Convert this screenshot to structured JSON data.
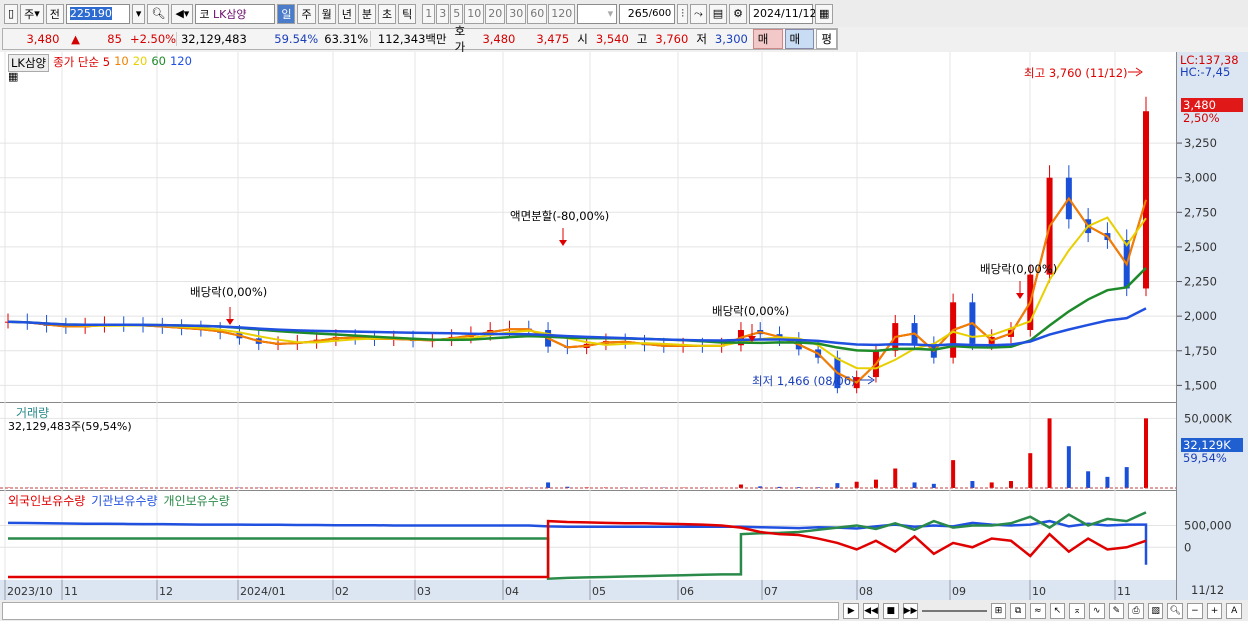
{
  "toolbar": {
    "market": "주",
    "prev": "전",
    "code": "225190",
    "name_prefix": "코",
    "name": "LK삼양",
    "periods": [
      "일",
      "주",
      "월",
      "년",
      "분",
      "초",
      "틱"
    ],
    "active_period": "일",
    "minutes": [
      "1",
      "3",
      "5",
      "10",
      "20",
      "30",
      "60",
      "120"
    ],
    "count": "265",
    "count_max": "/600",
    "date": "2024/11/12"
  },
  "quote": {
    "price": "3,480",
    "arrow": "▲",
    "change": "85",
    "rate": "+2.50%",
    "volume": "32,129,483",
    "vol_ratio": "59.54%",
    "turnover": "63.31%",
    "amount": "112,343백만",
    "ask_label": "호가",
    "ask": "3,480",
    "bid": "3,475",
    "open_label": "시",
    "open": "3,540",
    "high_label": "고",
    "high": "3,760",
    "low_label": "저",
    "low": "3,300",
    "buy": "매수",
    "sell": "매도",
    "avg": "평"
  },
  "legend": {
    "name": "LK삼양",
    "ma_label": "종가 단순 5",
    "ma": [
      {
        "label": "10",
        "color": "#f08000"
      },
      {
        "label": "20",
        "color": "#e8d000"
      },
      {
        "label": "60",
        "color": "#1e8a2a"
      },
      {
        "label": "120",
        "color": "#2050e0"
      }
    ],
    "ma5_color": "#e00000"
  },
  "volume_pane": {
    "title": "거래량",
    "value": "32,129,483주(59,54%)"
  },
  "holdings_pane": {
    "series": [
      {
        "name": "외국인보유수량",
        "color": "#e00000"
      },
      {
        "name": "기관보유수량",
        "color": "#2050e0"
      },
      {
        "name": "개인보유수량",
        "color": "#2a8a4a"
      }
    ]
  },
  "axis": {
    "lc": "LC:137,38",
    "hc": "HC:-7,45",
    "price_tag": "3,480",
    "rate_tag": "2,50%",
    "vol_tag": "32,129K",
    "vol_rate_tag": "59,54%",
    "last_date": "11/12"
  },
  "annotations": {
    "high": "최고 3,760 (11/12)",
    "low": "최저 1,466 (08/06)",
    "split": "액면분할(-80,00%)",
    "div1": "배당락(0,00%)",
    "div2": "배당락(0,00%)",
    "div3": "배당락(0,00%)"
  },
  "chart_data": {
    "type": "candlestick",
    "price_ticks": [
      1500,
      1750,
      2000,
      2250,
      2500,
      2750,
      3000,
      3250
    ],
    "price_ylim": [
      1380,
      3850
    ],
    "x_ticks": [
      "2023/10",
      "11",
      "12",
      "2024/01",
      "02",
      "03",
      "04",
      "05",
      "06",
      "07",
      "08",
      "09",
      "10",
      "11"
    ],
    "close": [
      1960,
      1950,
      1930,
      1920,
      1930,
      1940,
      1935,
      1930,
      1920,
      1910,
      1900,
      1880,
      1840,
      1800,
      1800,
      1810,
      1830,
      1850,
      1840,
      1830,
      1840,
      1820,
      1830,
      1850,
      1870,
      1900,
      1910,
      1900,
      1780,
      1770,
      1800,
      1820,
      1810,
      1790,
      1780,
      1790,
      1780,
      1790,
      1900,
      1870,
      1830,
      1760,
      1700,
      1480,
      1560,
      1750,
      1950,
      1800,
      1700,
      2100,
      1800,
      1850,
      1900,
      2300,
      3000,
      2700,
      2600,
      2550,
      2200,
      3480
    ],
    "volume_k": [
      300,
      250,
      200,
      200,
      250,
      200,
      150,
      200,
      150,
      150,
      200,
      200,
      250,
      200,
      150,
      150,
      200,
      150,
      150,
      150,
      200,
      150,
      150,
      200,
      200,
      250,
      300,
      250,
      4000,
      900,
      500,
      400,
      300,
      300,
      300,
      250,
      300,
      250,
      2500,
      1200,
      800,
      600,
      500,
      3500,
      4500,
      6000,
      14000,
      4000,
      3000,
      20000,
      5000,
      4000,
      5000,
      25000,
      50000,
      30000,
      12000,
      8000,
      15000,
      50000
    ],
    "volume_ticks": [
      50000
    ],
    "holdings_ticks": [
      0,
      500000
    ],
    "foreign": [
      -680000,
      -680000,
      -680000,
      -680000,
      -680000,
      -680000,
      -680000,
      -680000,
      -680000,
      -680000,
      -680000,
      -680000,
      -680000,
      -680000,
      -680000,
      -680000,
      -680000,
      -680000,
      -680000,
      -680000,
      -680000,
      -680000,
      -680000,
      -680000,
      -680000,
      -680000,
      -680000,
      -680000,
      600000,
      580000,
      570000,
      560000,
      550000,
      550000,
      540000,
      530000,
      520000,
      500000,
      450000,
      350000,
      300000,
      280000,
      200000,
      100000,
      -50000,
      150000,
      -100000,
      250000,
      -150000,
      100000,
      0,
      200000,
      150000,
      -200000,
      300000,
      -100000,
      200000,
      -50000,
      0,
      150000
    ],
    "institution": [
      560000,
      555000,
      550000,
      545000,
      540000,
      540000,
      535000,
      530000,
      530000,
      525000,
      520000,
      520000,
      520000,
      515000,
      515000,
      510000,
      510000,
      505000,
      505000,
      505000,
      500000,
      500000,
      500000,
      500000,
      500000,
      500000,
      500000,
      500000,
      480000,
      470000,
      470000,
      470000,
      470000,
      470000,
      470000,
      470000,
      470000,
      470000,
      470000,
      460000,
      450000,
      440000,
      460000,
      450000,
      430000,
      480000,
      520000,
      470000,
      500000,
      480000,
      560000,
      520000,
      500000,
      520000,
      600000,
      480000,
      540000,
      500000,
      520000,
      -400000
    ],
    "individual": [
      200000,
      200000,
      200000,
      200000,
      200000,
      200000,
      200000,
      200000,
      200000,
      200000,
      200000,
      200000,
      200000,
      200000,
      200000,
      200000,
      200000,
      200000,
      200000,
      200000,
      200000,
      200000,
      200000,
      200000,
      200000,
      200000,
      200000,
      200000,
      -720000,
      -700000,
      -690000,
      -680000,
      -670000,
      -660000,
      -650000,
      -640000,
      -630000,
      -620000,
      300000,
      320000,
      330000,
      350000,
      400000,
      450000,
      500000,
      420000,
      550000,
      400000,
      600000,
      450000,
      500000,
      500000,
      550000,
      700000,
      450000,
      750000,
      500000,
      650000,
      600000,
      800000
    ],
    "holdings_ylim": [
      -750000,
      900000
    ]
  }
}
